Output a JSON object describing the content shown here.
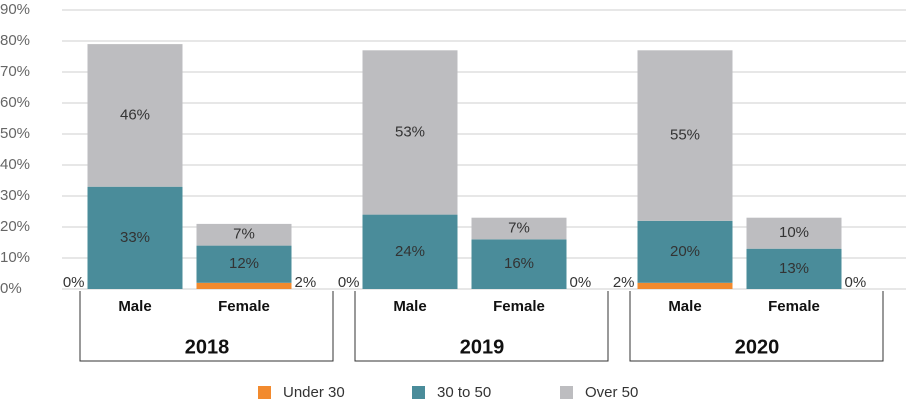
{
  "chart_data": {
    "type": "stacked_bar",
    "groups": [
      "2018",
      "2019",
      "2020"
    ],
    "categories": [
      "Male",
      "Female",
      "Male",
      "Female",
      "Male",
      "Female"
    ],
    "series": [
      {
        "name": "Under 30",
        "color": "#f28a2e",
        "values": [
          0,
          2,
          0,
          0,
          2,
          0
        ],
        "value_labels": [
          "0%",
          "2%",
          "0%",
          "0%",
          "2%",
          "0%"
        ]
      },
      {
        "name": "30 to 50",
        "color": "#4a8c9a",
        "values": [
          33,
          12,
          24,
          16,
          20,
          13
        ],
        "value_labels": [
          "33%",
          "12%",
          "24%",
          "16%",
          "20%",
          "13%"
        ]
      },
      {
        "name": "Over 50",
        "color": "#bdbdc0",
        "values": [
          46,
          7,
          53,
          7,
          55,
          10
        ],
        "value_labels": [
          "46%",
          "7%",
          "53%",
          "7%",
          "55%",
          "10%"
        ]
      }
    ],
    "ylim": [
      0,
      90
    ],
    "yticks": [
      {
        "value": 0,
        "label": "0%"
      },
      {
        "value": 10,
        "label": "10%"
      },
      {
        "value": 20,
        "label": "20%"
      },
      {
        "value": 30,
        "label": "30%"
      },
      {
        "value": 40,
        "label": "40%"
      },
      {
        "value": 50,
        "label": "50%"
      },
      {
        "value": 60,
        "label": "60%"
      },
      {
        "value": 70,
        "label": "70%"
      },
      {
        "value": 80,
        "label": "80%"
      },
      {
        "value": 90,
        "label": "90%"
      }
    ],
    "grid": true
  }
}
